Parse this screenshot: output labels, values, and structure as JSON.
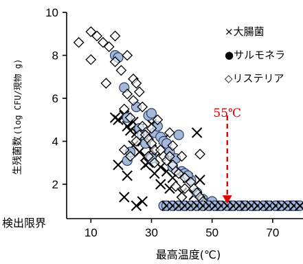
{
  "chart_data": {
    "type": "scatter",
    "xlabel": "最高温度(℃)",
    "ylabel_parts": [
      "生残菌数",
      "(log CFU/現物 g)"
    ],
    "xlim": [
      2,
      80
    ],
    "ylim": [
      0.4,
      10
    ],
    "x_ticks": [
      "10",
      "30",
      "50",
      "70"
    ],
    "x_tick_values": [
      10,
      30,
      50,
      70
    ],
    "y_ticks": [
      "2",
      "4",
      "6",
      "8",
      "10"
    ],
    "y_tick_values": [
      2,
      4,
      6,
      8,
      10
    ],
    "detection_limit_label": "検出限界",
    "detection_limit_value": 1,
    "annotation": {
      "text": "55℃",
      "x": 55,
      "arrow_from_y": 5.2,
      "arrow_to_y": 1.1,
      "color": "#e00000"
    },
    "legend": {
      "placement": "top-right",
      "entries": [
        "×大腸菌",
        "●サルモネラ",
        "◇リステリア"
      ]
    },
    "series": [
      {
        "name": "大腸菌",
        "marker": "x",
        "color": "#000000",
        "points": [
          [
            18,
            5.1
          ],
          [
            19,
            5.0
          ],
          [
            21,
            5.2
          ],
          [
            22,
            4.7
          ],
          [
            23,
            4.5
          ],
          [
            24,
            4.9
          ],
          [
            25,
            4.4
          ],
          [
            26,
            4.6
          ],
          [
            24,
            3.8
          ],
          [
            26,
            3.5
          ],
          [
            27,
            4.0
          ],
          [
            28,
            3.3
          ],
          [
            29,
            3.0
          ],
          [
            30,
            3.6
          ],
          [
            31,
            3.2
          ],
          [
            33,
            2.8
          ],
          [
            35,
            2.6
          ],
          [
            37,
            2.3
          ],
          [
            28,
            2.9
          ],
          [
            31,
            2.5
          ],
          [
            33,
            2.0
          ],
          [
            36,
            1.8
          ],
          [
            40,
            1.6
          ],
          [
            42,
            2.3
          ],
          [
            44,
            1.5
          ],
          [
            46,
            2.2
          ],
          [
            45,
            4.4
          ],
          [
            19,
            2.9
          ],
          [
            22,
            2.4
          ],
          [
            27,
            1.2
          ],
          [
            25,
            1.0
          ],
          [
            39,
            1.0
          ],
          [
            21,
            1.4
          ],
          [
            34,
            4.1
          ],
          [
            30,
            4.8
          ]
        ]
      },
      {
        "name": "サルモネラ",
        "marker": "circle",
        "color": "#a4b8d8",
        "points": [
          [
            18,
            8.0
          ],
          [
            19,
            7.9
          ],
          [
            21,
            6.5
          ],
          [
            22,
            5.1
          ],
          [
            25,
            5.6
          ],
          [
            26,
            4.6
          ],
          [
            27,
            4.3
          ],
          [
            29,
            5.2
          ],
          [
            30,
            5.3
          ],
          [
            31,
            4.4
          ],
          [
            32,
            4.7
          ],
          [
            33,
            4.2
          ],
          [
            34,
            4.0
          ],
          [
            35,
            3.9
          ],
          [
            36,
            3.5
          ],
          [
            38,
            3.2
          ],
          [
            39,
            4.3
          ],
          [
            40,
            2.6
          ],
          [
            41,
            2.5
          ],
          [
            43,
            2.2
          ],
          [
            45,
            1.6
          ],
          [
            47,
            1.3
          ],
          [
            48,
            1.1
          ],
          [
            50,
            1.2
          ],
          [
            28,
            3.9
          ],
          [
            30,
            3.2
          ],
          [
            22,
            3.1
          ],
          [
            23,
            3.5
          ],
          [
            37,
            2.8
          ],
          [
            42,
            2.4
          ],
          [
            52,
            1.0
          ],
          [
            56,
            1.0
          ],
          [
            60,
            1.0
          ],
          [
            64,
            1.0
          ],
          [
            68,
            1.0
          ],
          [
            72,
            1.0
          ],
          [
            76,
            1.0
          ],
          [
            78,
            1.0
          ],
          [
            34,
            1.0
          ]
        ]
      },
      {
        "name": "リステリア",
        "marker": "diamond",
        "color": "#000000",
        "points": [
          [
            6,
            8.6
          ],
          [
            10,
            7.8
          ],
          [
            10,
            9.1
          ],
          [
            12,
            8.9
          ],
          [
            14,
            8.6
          ],
          [
            16,
            8.4
          ],
          [
            15,
            6.7
          ],
          [
            18,
            8.9
          ],
          [
            18,
            7.7
          ],
          [
            20,
            7.3
          ],
          [
            22,
            8.0
          ],
          [
            22,
            6.2
          ],
          [
            24,
            6.9
          ],
          [
            25,
            6.7
          ],
          [
            26,
            6.3
          ],
          [
            27,
            5.6
          ],
          [
            24,
            5.9
          ],
          [
            21,
            5.5
          ],
          [
            23,
            5.1
          ],
          [
            26,
            4.3
          ],
          [
            27,
            4.7
          ],
          [
            28,
            4.3
          ],
          [
            29,
            4.1
          ],
          [
            30,
            3.9
          ],
          [
            31,
            3.6
          ],
          [
            33,
            3.6
          ],
          [
            34,
            3.3
          ],
          [
            35,
            3.1
          ],
          [
            36,
            3.3
          ],
          [
            37,
            2.9
          ],
          [
            38,
            2.6
          ],
          [
            39,
            2.5
          ],
          [
            41,
            2.3
          ],
          [
            43,
            2.1
          ],
          [
            44,
            1.8
          ],
          [
            45,
            1.6
          ],
          [
            46,
            1.4
          ],
          [
            47,
            1.2
          ],
          [
            21,
            3.6
          ],
          [
            23,
            3.3
          ],
          [
            29,
            3.3
          ],
          [
            30,
            4.6
          ],
          [
            32,
            5.0
          ],
          [
            36,
            4.4
          ],
          [
            37,
            3.8
          ],
          [
            40,
            3.3
          ],
          [
            46,
            3.4
          ],
          [
            40,
            1.4
          ],
          [
            38,
            1.9
          ],
          [
            25,
            4.0
          ],
          [
            31,
            3.0
          ],
          [
            41,
            1.8
          ]
        ]
      },
      {
        "name": "検出限界_cluster",
        "marker": "mixed-cluster",
        "color": "#000000",
        "points": [
          [
            35,
            1.0
          ],
          [
            37,
            1.0
          ],
          [
            39,
            1.0
          ],
          [
            41,
            1.0
          ],
          [
            43,
            1.0
          ],
          [
            45,
            1.0
          ],
          [
            47,
            1.0
          ],
          [
            49,
            1.0
          ],
          [
            51,
            1.0
          ],
          [
            53,
            1.0
          ],
          [
            55,
            1.0
          ],
          [
            57,
            1.0
          ],
          [
            59,
            1.0
          ],
          [
            61,
            1.0
          ],
          [
            63,
            1.0
          ],
          [
            65,
            1.0
          ],
          [
            67,
            1.0
          ],
          [
            69,
            1.0
          ],
          [
            71,
            1.0
          ],
          [
            73,
            1.0
          ],
          [
            75,
            1.0
          ],
          [
            77,
            1.0
          ],
          [
            79,
            1.0
          ]
        ]
      }
    ]
  }
}
